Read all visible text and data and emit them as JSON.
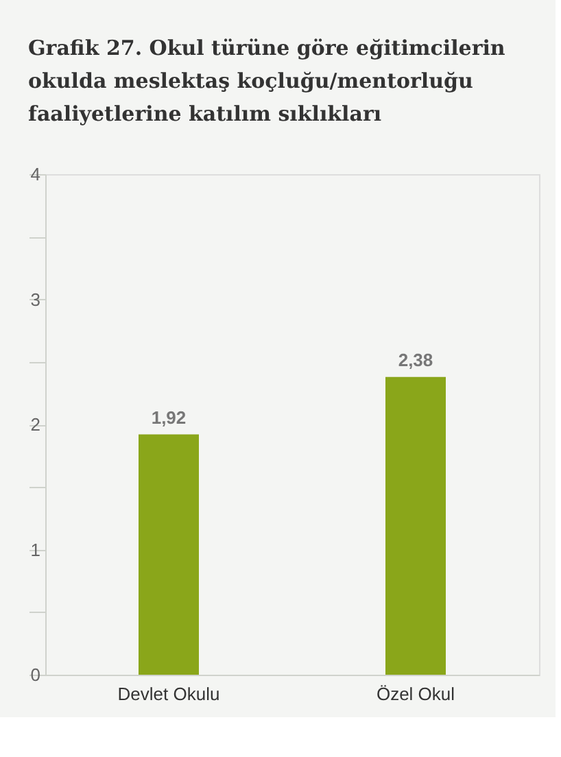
{
  "chart_data": {
    "type": "bar",
    "title": "Grafik 27. Okul türüne göre eğitimcilerin okulda meslektaş koçluğu/mentorluğu faaliyetlerine katılım sıklıkları",
    "categories": [
      "Devlet Okulu",
      "Özel Okul"
    ],
    "values": [
      1.92,
      2.38
    ],
    "value_labels": [
      "1,92",
      "2,38"
    ],
    "color": "#8aa61a",
    "ylim": [
      0,
      4
    ],
    "yticks": [
      0,
      {
        "value": 0.5,
        "label": null
      },
      1,
      {
        "value": 1.5,
        "label": null
      },
      2,
      {
        "value": 2.5,
        "label": null
      },
      3,
      {
        "value": 3.5,
        "label": null
      },
      4
    ],
    "grid": false
  }
}
